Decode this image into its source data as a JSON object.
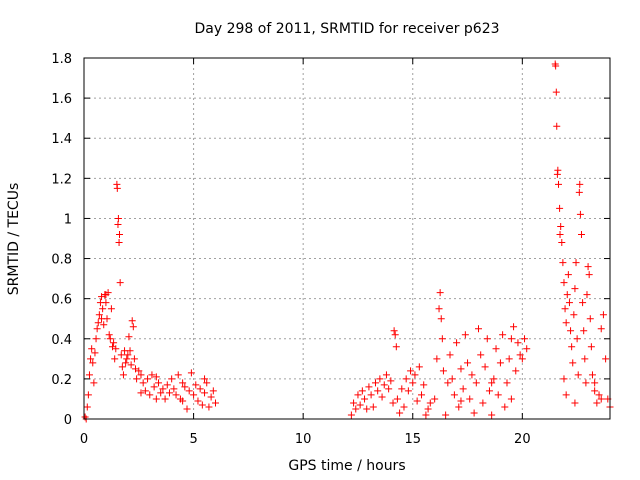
{
  "chart_data": {
    "type": "scatter",
    "title": "Day 298 of 2011, SRMTID for receiver p623",
    "xlabel": "GPS time / hours",
    "ylabel": "SRMTID / TECUs",
    "xlim": [
      0,
      24
    ],
    "ylim": [
      0,
      1.8
    ],
    "x_ticks": [
      0,
      5,
      10,
      15,
      20
    ],
    "x_tick_labels": [
      "0",
      "5",
      "10",
      "15",
      "20"
    ],
    "y_ticks": [
      0,
      0.2,
      0.4,
      0.6,
      0.8,
      1,
      1.2,
      1.4,
      1.6,
      1.8
    ],
    "y_tick_labels": [
      "0",
      "0.2",
      "0.4",
      "0.6",
      "0.8",
      "1",
      "1.2",
      "1.4",
      "1.6",
      "1.8"
    ],
    "grid": true,
    "marker": "+",
    "color": "#ff0000",
    "series": [
      {
        "name": "SRMTID",
        "points": [
          [
            0.05,
            0.01
          ],
          [
            0.1,
            0.0
          ],
          [
            0.15,
            0.06
          ],
          [
            0.2,
            0.12
          ],
          [
            0.25,
            0.22
          ],
          [
            0.3,
            0.3
          ],
          [
            0.35,
            0.35
          ],
          [
            0.4,
            0.28
          ],
          [
            0.45,
            0.18
          ],
          [
            0.5,
            0.33
          ],
          [
            0.55,
            0.4
          ],
          [
            0.6,
            0.45
          ],
          [
            0.65,
            0.48
          ],
          [
            0.7,
            0.52
          ],
          [
            0.75,
            0.58
          ],
          [
            0.8,
            0.61
          ],
          [
            0.85,
            0.55
          ],
          [
            0.9,
            0.47
          ],
          [
            0.95,
            0.62
          ],
          [
            1.0,
            0.58
          ],
          [
            1.05,
            0.5
          ],
          [
            1.1,
            0.63
          ],
          [
            1.15,
            0.42
          ],
          [
            1.2,
            0.4
          ],
          [
            1.25,
            0.55
          ],
          [
            1.3,
            0.36
          ],
          [
            1.35,
            0.38
          ],
          [
            1.4,
            0.3
          ],
          [
            1.45,
            0.35
          ],
          [
            1.5,
            1.17
          ],
          [
            1.52,
            1.15
          ],
          [
            1.55,
            0.97
          ],
          [
            1.57,
            1.0
          ],
          [
            1.6,
            0.88
          ],
          [
            1.62,
            0.92
          ],
          [
            1.65,
            0.68
          ],
          [
            1.7,
            0.32
          ],
          [
            1.75,
            0.26
          ],
          [
            1.8,
            0.22
          ],
          [
            1.85,
            0.34
          ],
          [
            1.9,
            0.28
          ],
          [
            1.95,
            0.3
          ],
          [
            2.0,
            0.32
          ],
          [
            2.05,
            0.41
          ],
          [
            2.1,
            0.34
          ],
          [
            2.15,
            0.27
          ],
          [
            2.2,
            0.49
          ],
          [
            2.25,
            0.46
          ],
          [
            2.3,
            0.3
          ],
          [
            2.35,
            0.25
          ],
          [
            2.4,
            0.2
          ],
          [
            2.5,
            0.24
          ],
          [
            2.6,
            0.22
          ],
          [
            2.7,
            0.18
          ],
          [
            2.8,
            0.14
          ],
          [
            2.9,
            0.2
          ],
          [
            3.0,
            0.12
          ],
          [
            3.1,
            0.22
          ],
          [
            3.2,
            0.16
          ],
          [
            3.3,
            0.1
          ],
          [
            3.4,
            0.18
          ],
          [
            3.5,
            0.13
          ],
          [
            3.6,
            0.15
          ],
          [
            3.7,
            0.1
          ],
          [
            3.8,
            0.17
          ],
          [
            3.9,
            0.13
          ],
          [
            4.0,
            0.2
          ],
          [
            4.1,
            0.15
          ],
          [
            4.2,
            0.12
          ],
          [
            4.3,
            0.22
          ],
          [
            4.4,
            0.1
          ],
          [
            4.5,
            0.18
          ],
          [
            4.6,
            0.16
          ],
          [
            4.7,
            0.05
          ],
          [
            4.8,
            0.14
          ],
          [
            4.9,
            0.23
          ],
          [
            5.0,
            0.12
          ],
          [
            5.1,
            0.17
          ],
          [
            5.2,
            0.09
          ],
          [
            5.3,
            0.15
          ],
          [
            5.4,
            0.07
          ],
          [
            5.5,
            0.13
          ],
          [
            5.6,
            0.18
          ],
          [
            5.7,
            0.06
          ],
          [
            5.8,
            0.11
          ],
          [
            5.9,
            0.14
          ],
          [
            6.0,
            0.08
          ],
          [
            1.0,
            0.62
          ],
          [
            0.8,
            0.5
          ],
          [
            2.6,
            0.13
          ],
          [
            3.3,
            0.21
          ],
          [
            4.5,
            0.09
          ],
          [
            5.5,
            0.2
          ],
          [
            12.2,
            0.02
          ],
          [
            12.3,
            0.08
          ],
          [
            12.4,
            0.05
          ],
          [
            12.5,
            0.12
          ],
          [
            12.6,
            0.07
          ],
          [
            12.7,
            0.14
          ],
          [
            12.8,
            0.1
          ],
          [
            12.9,
            0.05
          ],
          [
            13.0,
            0.16
          ],
          [
            13.1,
            0.12
          ],
          [
            13.2,
            0.06
          ],
          [
            13.3,
            0.18
          ],
          [
            13.4,
            0.14
          ],
          [
            13.5,
            0.2
          ],
          [
            13.6,
            0.11
          ],
          [
            13.7,
            0.17
          ],
          [
            13.8,
            0.22
          ],
          [
            13.9,
            0.15
          ],
          [
            14.0,
            0.19
          ],
          [
            14.1,
            0.08
          ],
          [
            14.15,
            0.44
          ],
          [
            14.2,
            0.42
          ],
          [
            14.25,
            0.36
          ],
          [
            14.3,
            0.1
          ],
          [
            14.4,
            0.03
          ],
          [
            14.5,
            0.15
          ],
          [
            14.6,
            0.06
          ],
          [
            14.7,
            0.2
          ],
          [
            14.8,
            0.14
          ],
          [
            14.9,
            0.24
          ],
          [
            15.0,
            0.18
          ],
          [
            15.1,
            0.22
          ],
          [
            15.2,
            0.09
          ],
          [
            15.3,
            0.26
          ],
          [
            15.4,
            0.12
          ],
          [
            15.5,
            0.17
          ],
          [
            15.6,
            0.02
          ],
          [
            15.7,
            0.05
          ],
          [
            15.8,
            0.08
          ],
          [
            16.0,
            0.1
          ],
          [
            16.1,
            0.3
          ],
          [
            16.2,
            0.55
          ],
          [
            16.25,
            0.63
          ],
          [
            16.3,
            0.5
          ],
          [
            16.35,
            0.4
          ],
          [
            16.4,
            0.24
          ],
          [
            16.5,
            0.02
          ],
          [
            16.6,
            0.18
          ],
          [
            16.7,
            0.32
          ],
          [
            16.8,
            0.2
          ],
          [
            16.9,
            0.12
          ],
          [
            17.0,
            0.38
          ],
          [
            17.1,
            0.06
          ],
          [
            17.2,
            0.25
          ],
          [
            17.3,
            0.15
          ],
          [
            17.4,
            0.42
          ],
          [
            17.5,
            0.28
          ],
          [
            17.6,
            0.1
          ],
          [
            17.7,
            0.22
          ],
          [
            17.8,
            0.03
          ],
          [
            17.9,
            0.18
          ],
          [
            18.0,
            0.45
          ],
          [
            18.1,
            0.32
          ],
          [
            18.2,
            0.08
          ],
          [
            18.3,
            0.26
          ],
          [
            18.4,
            0.4
          ],
          [
            18.5,
            0.14
          ],
          [
            18.6,
            0.02
          ],
          [
            18.7,
            0.2
          ],
          [
            18.8,
            0.35
          ],
          [
            18.9,
            0.12
          ],
          [
            19.0,
            0.28
          ],
          [
            19.1,
            0.42
          ],
          [
            19.2,
            0.06
          ],
          [
            19.3,
            0.18
          ],
          [
            19.4,
            0.3
          ],
          [
            19.5,
            0.1
          ],
          [
            19.6,
            0.46
          ],
          [
            19.7,
            0.24
          ],
          [
            19.8,
            0.38
          ],
          [
            19.9,
            0.32
          ],
          [
            20.0,
            0.3
          ],
          [
            20.1,
            0.4
          ],
          [
            20.2,
            0.35
          ],
          [
            19.5,
            0.4
          ],
          [
            18.6,
            0.18
          ],
          [
            17.2,
            0.09
          ],
          [
            21.5,
            1.77
          ],
          [
            21.52,
            1.76
          ],
          [
            21.55,
            1.63
          ],
          [
            21.57,
            1.46
          ],
          [
            21.6,
            1.22
          ],
          [
            21.62,
            1.24
          ],
          [
            21.65,
            1.17
          ],
          [
            21.7,
            1.05
          ],
          [
            21.72,
            0.92
          ],
          [
            21.75,
            0.96
          ],
          [
            21.8,
            0.88
          ],
          [
            21.85,
            0.78
          ],
          [
            21.9,
            0.68
          ],
          [
            21.95,
            0.55
          ],
          [
            22.0,
            0.48
          ],
          [
            22.05,
            0.62
          ],
          [
            22.1,
            0.72
          ],
          [
            22.15,
            0.58
          ],
          [
            22.2,
            0.44
          ],
          [
            22.25,
            0.36
          ],
          [
            22.3,
            0.28
          ],
          [
            22.35,
            0.52
          ],
          [
            22.4,
            0.65
          ],
          [
            22.45,
            0.78
          ],
          [
            22.5,
            0.4
          ],
          [
            22.55,
            0.22
          ],
          [
            22.6,
            1.13
          ],
          [
            22.62,
            1.17
          ],
          [
            22.65,
            1.02
          ],
          [
            22.7,
            0.92
          ],
          [
            22.75,
            0.58
          ],
          [
            22.8,
            0.44
          ],
          [
            22.85,
            0.3
          ],
          [
            22.9,
            0.18
          ],
          [
            22.95,
            0.62
          ],
          [
            23.0,
            0.76
          ],
          [
            23.05,
            0.72
          ],
          [
            23.1,
            0.5
          ],
          [
            23.15,
            0.36
          ],
          [
            23.2,
            0.22
          ],
          [
            23.3,
            0.14
          ],
          [
            23.4,
            0.08
          ],
          [
            23.5,
            0.12
          ],
          [
            23.6,
            0.45
          ],
          [
            23.7,
            0.52
          ],
          [
            23.8,
            0.3
          ],
          [
            23.9,
            0.1
          ],
          [
            24.0,
            0.06
          ],
          [
            22.0,
            0.12
          ],
          [
            22.4,
            0.08
          ],
          [
            21.9,
            0.2
          ],
          [
            23.3,
            0.18
          ],
          [
            23.6,
            0.1
          ]
        ]
      }
    ]
  }
}
